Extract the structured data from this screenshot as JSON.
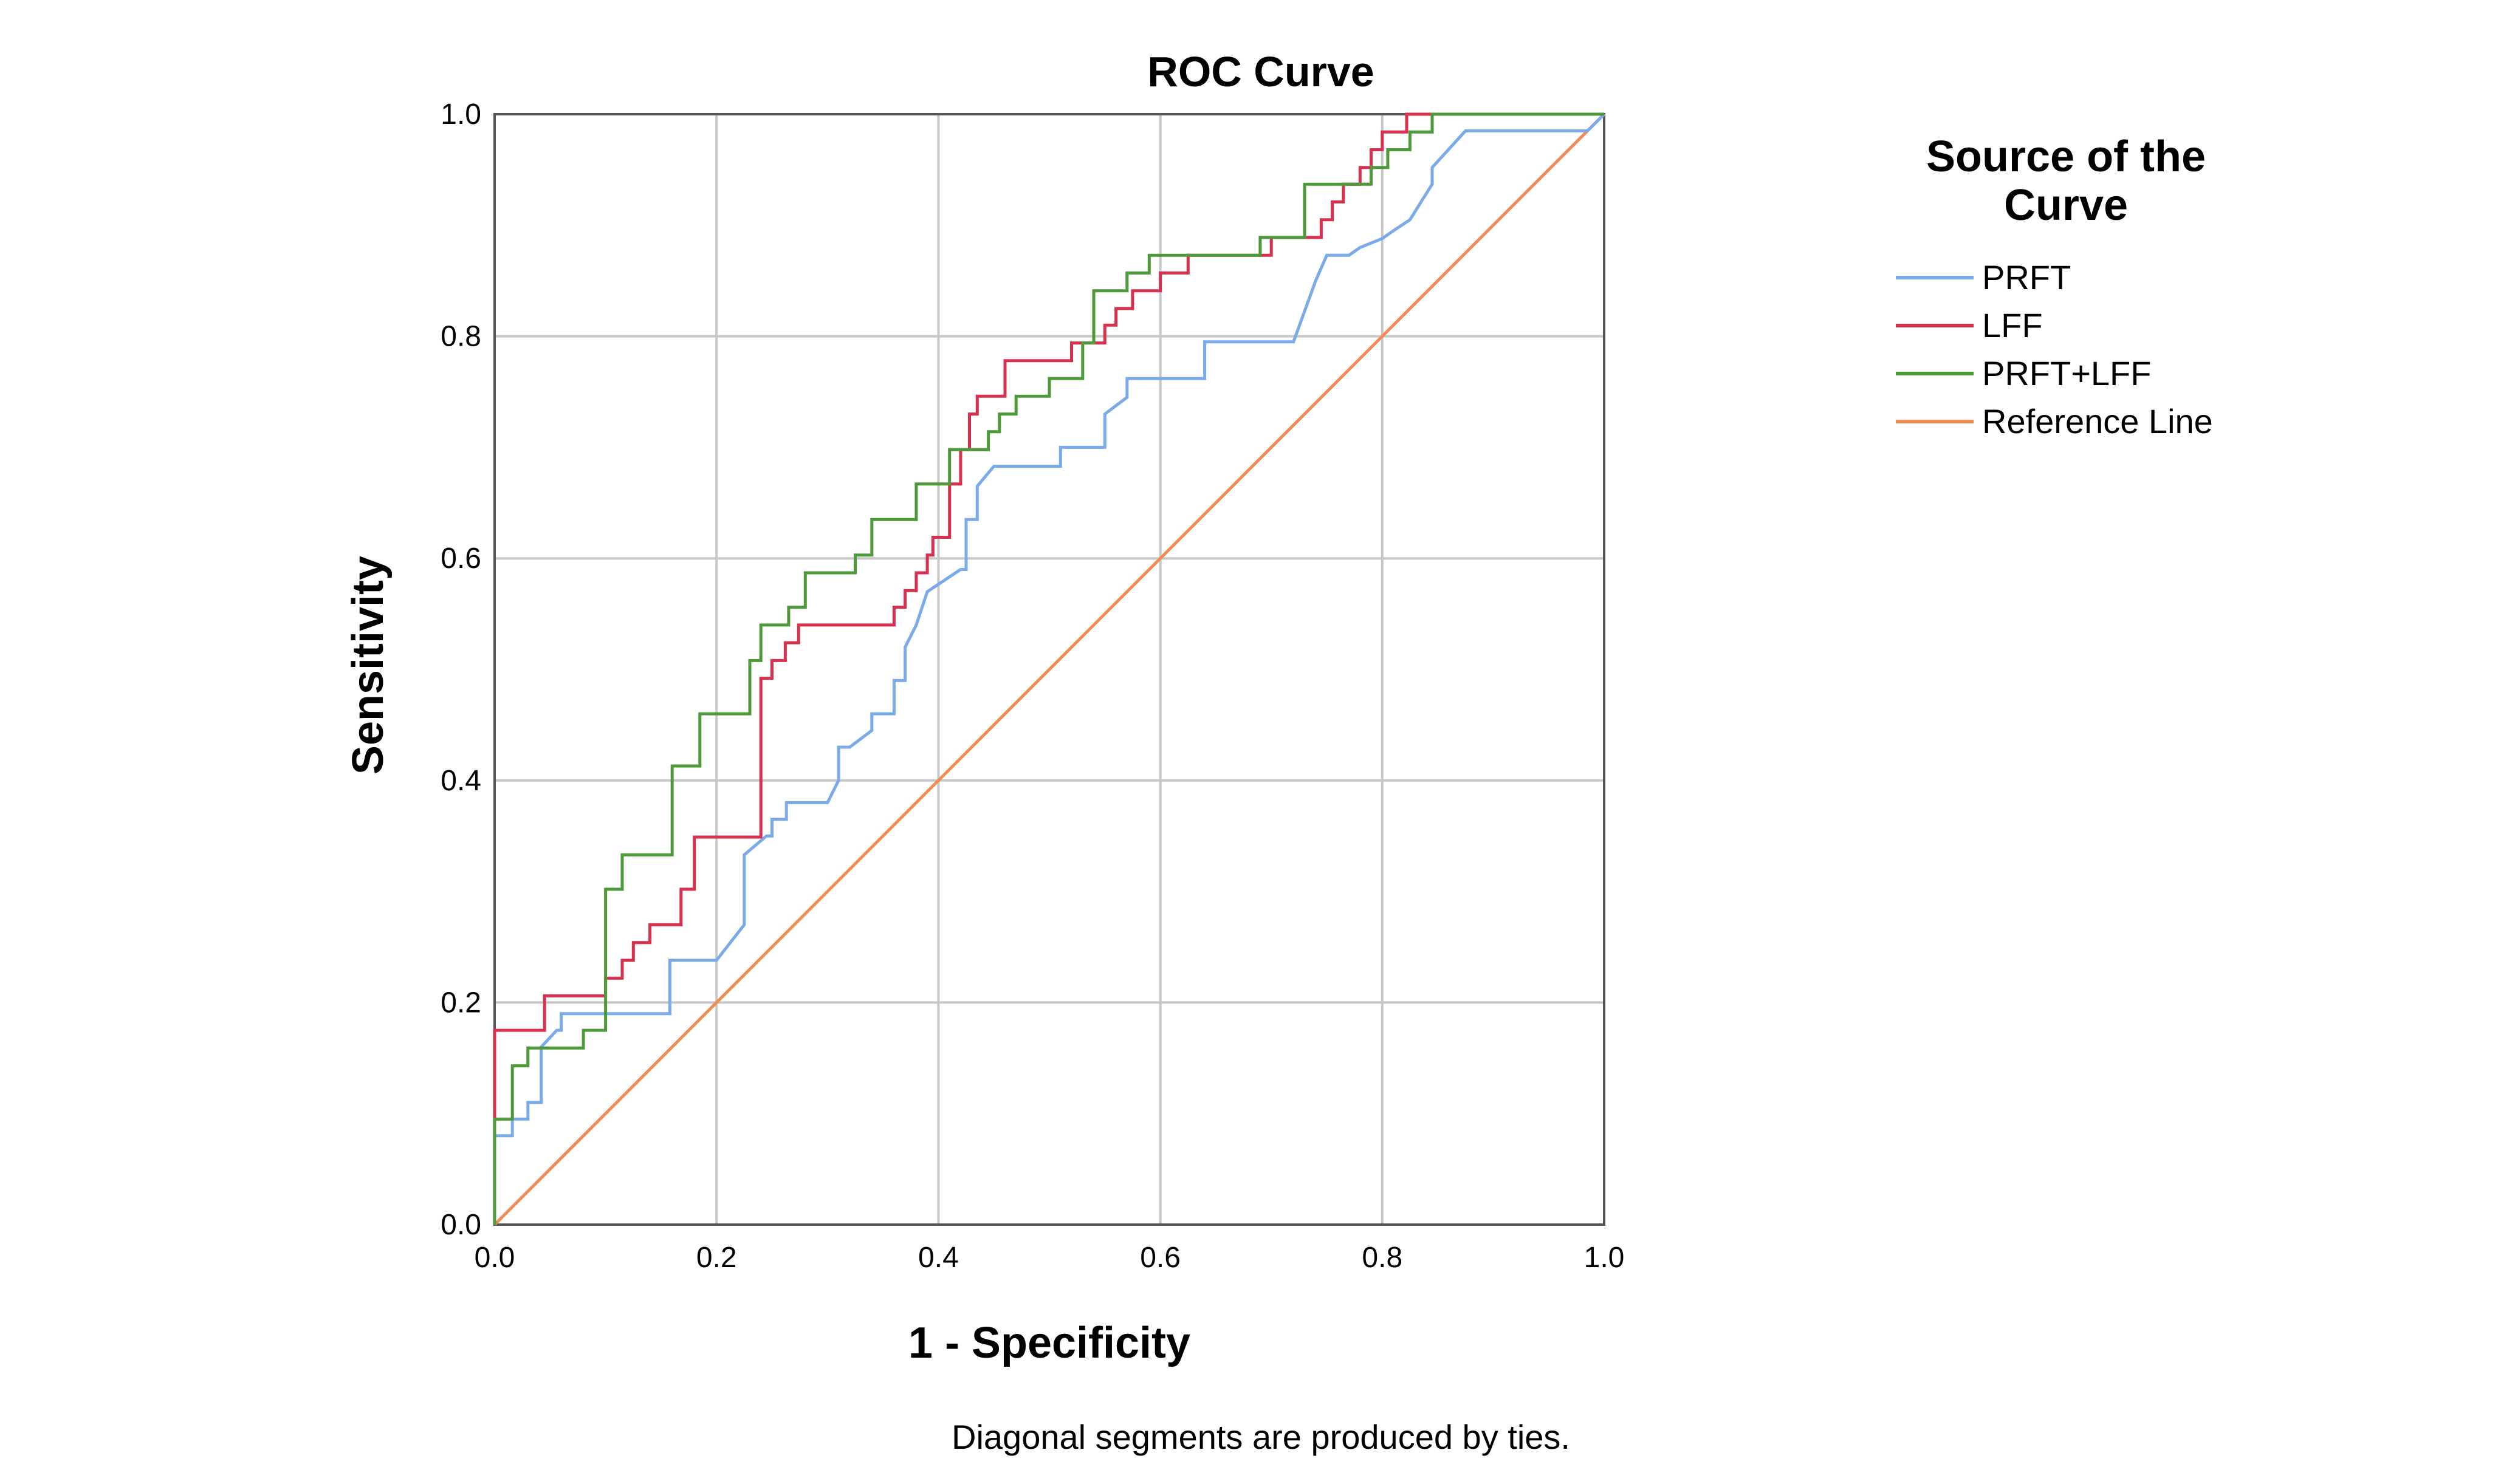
{
  "chart_data": {
    "type": "line",
    "title": "ROC Curve",
    "xlabel": "1 - Specificity",
    "ylabel": "Sensitivity",
    "xlim": [
      0,
      1
    ],
    "ylim": [
      0,
      1
    ],
    "x_ticks": [
      "0.0",
      "0.2",
      "0.4",
      "0.6",
      "0.8",
      "1.0"
    ],
    "y_ticks": [
      "0.0",
      "0.2",
      "0.4",
      "0.6",
      "0.8",
      "1.0"
    ],
    "grid": true,
    "footnote": "Diagonal segments are produced by ties.",
    "legend": {
      "title": "Source of the Curve",
      "title_lines": [
        "Source of the",
        "Curve"
      ],
      "position": "right"
    },
    "series": [
      {
        "name": "PRFT",
        "color": "#7aaae8",
        "x": [
          0,
          0,
          0.016,
          0.016,
          0.03,
          0.03,
          0.042,
          0.042,
          0.056,
          0.06,
          0.06,
          0.158,
          0.158,
          0.2,
          0.225,
          0.225,
          0.245,
          0.25,
          0.25,
          0.263,
          0.263,
          0.27,
          0.27,
          0.3,
          0.31,
          0.31,
          0.32,
          0.34,
          0.34,
          0.36,
          0.36,
          0.37,
          0.37,
          0.38,
          0.38,
          0.39,
          0.42,
          0.425,
          0.425,
          0.435,
          0.435,
          0.45,
          0.51,
          0.51,
          0.55,
          0.55,
          0.57,
          0.57,
          0.59,
          0.64,
          0.64,
          0.72,
          0.74,
          0.75,
          0.77,
          0.78,
          0.8,
          0.81,
          0.825,
          0.845,
          0.845,
          0.875,
          0.985,
          1.0
        ],
        "y": [
          0,
          0.08,
          0.08,
          0.095,
          0.095,
          0.11,
          0.11,
          0.16,
          0.175,
          0.175,
          0.19,
          0.19,
          0.238,
          0.238,
          0.27,
          0.333,
          0.35,
          0.35,
          0.365,
          0.365,
          0.38,
          0.38,
          0.38,
          0.38,
          0.4,
          0.43,
          0.43,
          0.445,
          0.46,
          0.46,
          0.49,
          0.49,
          0.52,
          0.54,
          0.54,
          0.57,
          0.59,
          0.59,
          0.635,
          0.635,
          0.665,
          0.683,
          0.683,
          0.7,
          0.7,
          0.73,
          0.745,
          0.762,
          0.762,
          0.762,
          0.795,
          0.795,
          0.85,
          0.873,
          0.873,
          0.88,
          0.888,
          0.895,
          0.905,
          0.937,
          0.952,
          0.985,
          0.985,
          1.0
        ]
      },
      {
        "name": "LFF",
        "color": "#d8304f",
        "x": [
          0,
          0,
          0.045,
          0.045,
          0.1,
          0.1,
          0.115,
          0.115,
          0.125,
          0.125,
          0.14,
          0.14,
          0.168,
          0.168,
          0.18,
          0.18,
          0.24,
          0.24,
          0.25,
          0.25,
          0.262,
          0.262,
          0.274,
          0.274,
          0.36,
          0.36,
          0.37,
          0.37,
          0.38,
          0.38,
          0.39,
          0.39,
          0.395,
          0.395,
          0.41,
          0.41,
          0.42,
          0.42,
          0.428,
          0.428,
          0.435,
          0.435,
          0.46,
          0.46,
          0.52,
          0.52,
          0.55,
          0.55,
          0.56,
          0.56,
          0.575,
          0.575,
          0.6,
          0.6,
          0.625,
          0.625,
          0.7,
          0.7,
          0.745,
          0.745,
          0.755,
          0.755,
          0.765,
          0.765,
          0.78,
          0.78,
          0.79,
          0.79,
          0.8,
          0.8,
          0.822,
          0.822,
          0.835,
          0.835,
          0.842,
          0.842,
          1.0
        ],
        "y": [
          0.095,
          0.175,
          0.175,
          0.206,
          0.206,
          0.222,
          0.222,
          0.238,
          0.238,
          0.254,
          0.254,
          0.27,
          0.27,
          0.302,
          0.302,
          0.349,
          0.349,
          0.492,
          0.492,
          0.508,
          0.508,
          0.524,
          0.524,
          0.54,
          0.54,
          0.556,
          0.556,
          0.571,
          0.571,
          0.587,
          0.587,
          0.603,
          0.603,
          0.619,
          0.619,
          0.667,
          0.667,
          0.698,
          0.698,
          0.73,
          0.73,
          0.746,
          0.746,
          0.778,
          0.778,
          0.794,
          0.794,
          0.81,
          0.81,
          0.825,
          0.825,
          0.841,
          0.841,
          0.857,
          0.857,
          0.873,
          0.873,
          0.889,
          0.889,
          0.905,
          0.905,
          0.921,
          0.921,
          0.937,
          0.937,
          0.952,
          0.952,
          0.968,
          0.968,
          0.984,
          0.984,
          1.0,
          1.0,
          1.0,
          1.0,
          1.0,
          1.0
        ]
      },
      {
        "name": "PRFT+LFF",
        "color": "#4e9a3a",
        "x": [
          0,
          0,
          0.016,
          0.016,
          0.03,
          0.03,
          0.045,
          0.045,
          0.08,
          0.08,
          0.095,
          0.095,
          0.1,
          0.1,
          0.115,
          0.115,
          0.16,
          0.16,
          0.185,
          0.185,
          0.23,
          0.23,
          0.24,
          0.24,
          0.265,
          0.265,
          0.28,
          0.28,
          0.325,
          0.325,
          0.34,
          0.34,
          0.38,
          0.38,
          0.41,
          0.41,
          0.445,
          0.445,
          0.455,
          0.455,
          0.47,
          0.47,
          0.5,
          0.5,
          0.53,
          0.53,
          0.54,
          0.54,
          0.57,
          0.57,
          0.59,
          0.59,
          0.69,
          0.69,
          0.73,
          0.73,
          0.79,
          0.79,
          0.805,
          0.805,
          0.825,
          0.825,
          0.845,
          0.845,
          1.0
        ],
        "y": [
          0.0,
          0.095,
          0.095,
          0.143,
          0.143,
          0.159,
          0.159,
          0.159,
          0.159,
          0.175,
          0.175,
          0.175,
          0.175,
          0.302,
          0.302,
          0.333,
          0.333,
          0.413,
          0.413,
          0.46,
          0.46,
          0.508,
          0.508,
          0.54,
          0.54,
          0.556,
          0.556,
          0.587,
          0.587,
          0.603,
          0.603,
          0.635,
          0.635,
          0.667,
          0.667,
          0.698,
          0.698,
          0.714,
          0.714,
          0.73,
          0.73,
          0.746,
          0.746,
          0.762,
          0.762,
          0.794,
          0.794,
          0.841,
          0.841,
          0.857,
          0.857,
          0.873,
          0.873,
          0.889,
          0.889,
          0.937,
          0.937,
          0.952,
          0.952,
          0.968,
          0.968,
          0.984,
          0.984,
          1.0,
          1.0
        ]
      },
      {
        "name": "Reference Line",
        "color": "#f08c56",
        "x": [
          0,
          1
        ],
        "y": [
          0,
          1
        ]
      }
    ]
  }
}
